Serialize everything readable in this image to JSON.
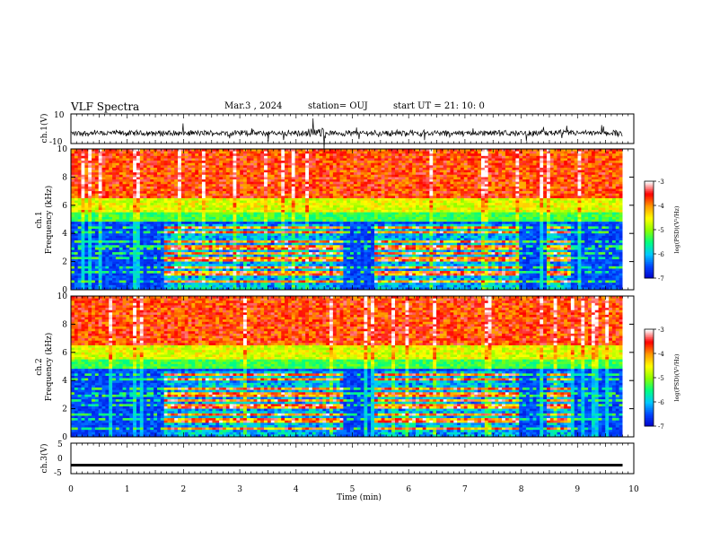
{
  "header": {
    "title": "VLF Spectra",
    "date": "Mar.3  , 2024",
    "station": "station= OUJ",
    "start_ut": "start  UT =   21: 10: 0"
  },
  "colorbar": {
    "ticks": [
      "-3",
      "-4",
      "-5",
      "-6",
      "-7"
    ],
    "label": "log(PSD)(V²/Hz)",
    "colormap": [
      "#0000c8",
      "#0044ff",
      "#00c8ff",
      "#00ff80",
      "#8cff00",
      "#ffff00",
      "#ff9900",
      "#ff0000",
      "#ffffff"
    ]
  },
  "chart_data": [
    {
      "type": "line",
      "name": "ch1-waveform",
      "ylabel": "ch.1(V)",
      "ylim": [
        -10,
        10
      ],
      "yticks": [
        "10",
        "-10"
      ],
      "xlim": [
        0,
        10
      ],
      "note_values": "noisy waveform centered near -3 V with bursts up to ±7 V"
    },
    {
      "type": "heatmap",
      "name": "ch1-spectrogram",
      "ylabel": "ch.1",
      "ylabel2": "Frequency  (kHz)",
      "ylim": [
        0,
        10
      ],
      "yticks": [
        "0",
        "2",
        "4",
        "6",
        "8",
        "10"
      ],
      "xlim": [
        0,
        9.8
      ],
      "value_range": [
        -7,
        -3
      ],
      "intense_band_segments_min": [
        [
          1.65,
          4.85
        ],
        [
          5.4,
          7.95
        ],
        [
          8.45,
          8.9
        ]
      ],
      "dominant_lines_khz": [
        0.6,
        1.2,
        1.6,
        2.2,
        2.6,
        3.0,
        3.4,
        4.1,
        4.4
      ]
    },
    {
      "type": "heatmap",
      "name": "ch2-spectrogram",
      "ylabel": "ch.2",
      "ylabel2": "Frequency  (kHz)",
      "ylim": [
        0,
        10
      ],
      "yticks": [
        "0",
        "2",
        "4",
        "6",
        "8",
        "10"
      ],
      "xlim": [
        0,
        9.8
      ],
      "value_range": [
        -7,
        -3
      ],
      "intense_band_segments_min": [
        [
          1.65,
          4.85
        ],
        [
          5.4,
          7.95
        ],
        [
          8.45,
          8.9
        ]
      ],
      "dominant_lines_khz": [
        0.6,
        1.2,
        1.6,
        2.2,
        2.6,
        3.0,
        3.4,
        4.1,
        4.4
      ]
    },
    {
      "type": "line",
      "name": "ch3-waveform",
      "ylabel": "ch.3(V)",
      "ylim": [
        -5,
        5
      ],
      "yticks": [
        "5",
        "0",
        "-5"
      ],
      "xlim": [
        0,
        9.8
      ],
      "values_constant": -2.2
    }
  ],
  "xaxis": {
    "label": "Time  (min)",
    "ticks": [
      "0",
      "1",
      "2",
      "3",
      "4",
      "5",
      "6",
      "7",
      "8",
      "9",
      "10"
    ],
    "range": [
      0,
      10
    ]
  }
}
